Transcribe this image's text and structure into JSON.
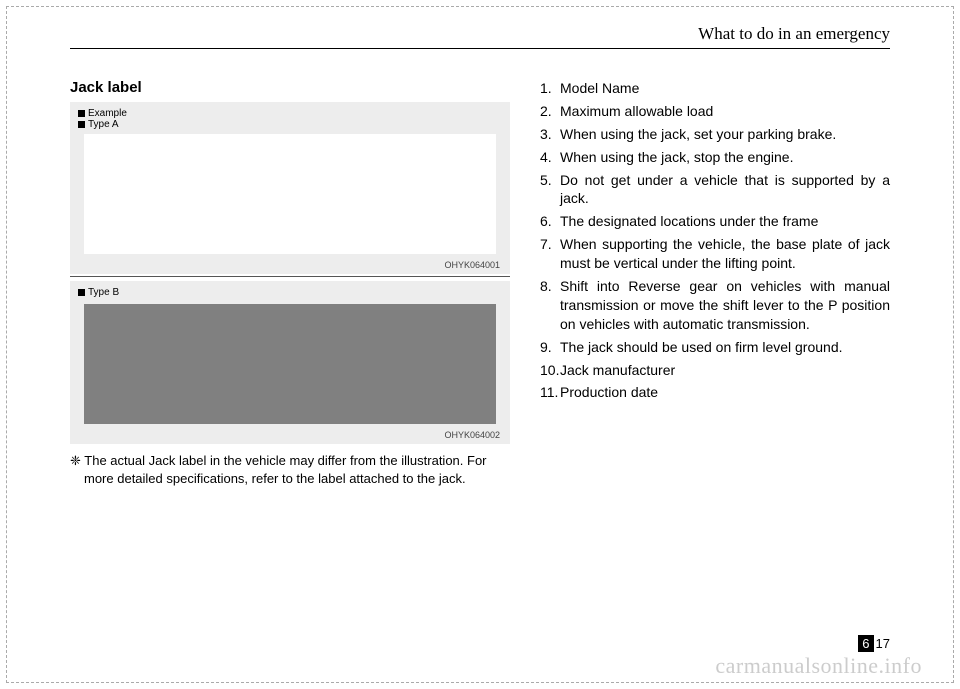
{
  "header": "What to do in an emergency",
  "section_title": "Jack label",
  "figure_a": {
    "example": "Example",
    "type": "Type A",
    "code": "OHYK064001"
  },
  "figure_b": {
    "type": "Type B",
    "code": "OHYK064002"
  },
  "note_line1": "The actual Jack label in the vehicle may differ from the illustration. For",
  "note_line2": "more detailed specifications, refer to the label attached to the jack.",
  "items": [
    {
      "n": "1.",
      "t": "Model Name"
    },
    {
      "n": "2.",
      "t": "Maximum allowable load"
    },
    {
      "n": "3.",
      "t": "When using the jack, set your parking brake."
    },
    {
      "n": "4.",
      "t": "When using the jack, stop the engine."
    },
    {
      "n": "5.",
      "t": "Do not get under a vehicle that is supported by a jack."
    },
    {
      "n": "6.",
      "t": "The designated locations under the frame"
    },
    {
      "n": "7.",
      "t": "When supporting the vehicle, the base plate of jack must be vertical under the lifting point."
    },
    {
      "n": "8.",
      "t": "Shift into Reverse gear on vehicles with manual transmission or move the shift lever to the P position on vehicles with automatic transmission."
    },
    {
      "n": "9.",
      "t": "The jack should be used on firm level ground."
    },
    {
      "n": "10.",
      "t": "Jack manufacturer"
    },
    {
      "n": "11.",
      "t": "Production date"
    }
  ],
  "footer": {
    "chapter": "6",
    "page": "17"
  },
  "watermark": "carmanualsonline.info"
}
